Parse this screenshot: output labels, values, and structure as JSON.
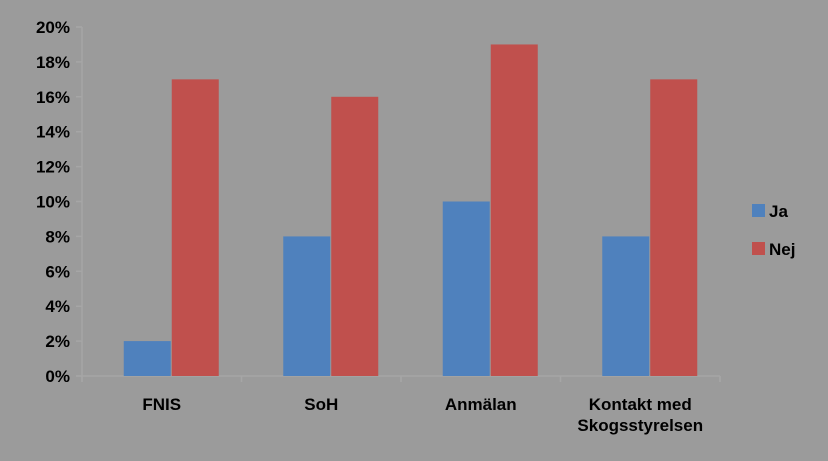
{
  "chart_data": {
    "type": "bar",
    "categories": [
      "FNIS",
      "SoH",
      "Anmälan",
      "Kontakt med Skogsstyrelsen"
    ],
    "category_lines": [
      [
        "FNIS"
      ],
      [
        "SoH"
      ],
      [
        "Anmälan"
      ],
      [
        "Kontakt med",
        "Skogsstyrelsen"
      ]
    ],
    "series": [
      {
        "name": "Ja",
        "color": "#4f81bd",
        "values": [
          2,
          8,
          10,
          8
        ]
      },
      {
        "name": "Nej",
        "color": "#c0504d",
        "values": [
          17,
          16,
          19,
          17
        ]
      }
    ],
    "yticks": [
      "0%",
      "2%",
      "4%",
      "6%",
      "8%",
      "10%",
      "12%",
      "14%",
      "16%",
      "18%",
      "20%"
    ],
    "ylim": [
      0,
      20
    ],
    "y_unit": "%",
    "grid": false,
    "legend_position": "right",
    "background_color": "#9b9b9b",
    "axis_color": "#a6a6a6"
  }
}
